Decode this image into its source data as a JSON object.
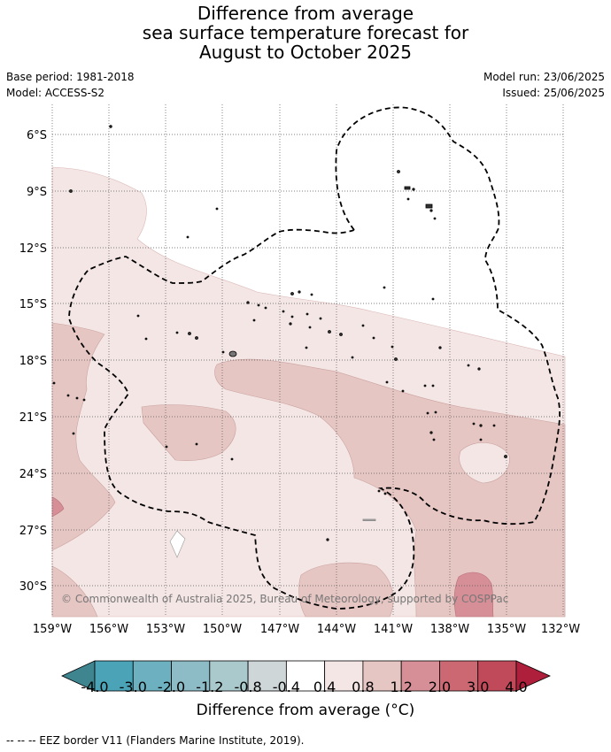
{
  "title": {
    "line1": "Difference from average",
    "line2": "sea surface temperature forecast for",
    "line3": "August to October 2025"
  },
  "meta": {
    "base_period": "Base period: 1981-2018",
    "model": "Model: ACCESS-S2",
    "model_run": "Model run: 23/06/2025",
    "issued": "Issued: 25/06/2025"
  },
  "map": {
    "lat_labels": [
      "6°S",
      "9°S",
      "12°S",
      "15°S",
      "18°S",
      "21°S",
      "24°S",
      "27°S",
      "30°S"
    ],
    "lon_labels": [
      "159°W",
      "156°W",
      "153°W",
      "150°W",
      "147°W",
      "144°W",
      "141°W",
      "138°W",
      "135°W",
      "132°W"
    ],
    "copyright": "© Commonwealth of Australia 2025, Bureau of Meteorology, supported by COSPPac",
    "gridlines": true,
    "eez_border_style": "dashed black"
  },
  "colorbar": {
    "colors": [
      "#3f8590",
      "#4aa3b6",
      "#6db0bf",
      "#8dbcc6",
      "#a9c9cc",
      "#cfd6d8",
      "#ffffff",
      "#f4e6e5",
      "#e6c6c3",
      "#d68f96",
      "#cb6872",
      "#c0495a",
      "#ad1f3b"
    ],
    "tick_labels": [
      "-4.0",
      "-3.0",
      "-2.0",
      "-1.2",
      "-0.8",
      "-0.4",
      "0.4",
      "0.8",
      "1.2",
      "2.0",
      "3.0",
      "4.0"
    ],
    "unit_label": "Difference from average (°C)"
  },
  "footer": "--  --  -- EEZ border V11 (Flanders Marine Institute, 2019)."
}
